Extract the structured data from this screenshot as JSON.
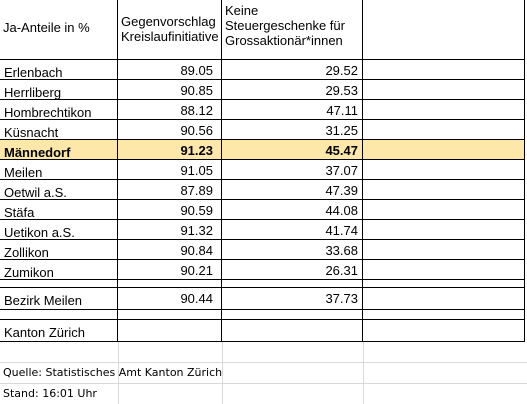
{
  "table": {
    "headers": [
      "Ja-Anteile in %",
      "Gegenvorschlag Kreislaufinitiative",
      "Keine Steuergeschenke für Grossaktionär*innen"
    ],
    "rows": [
      {
        "name": "Erlenbach",
        "v1": "89.05",
        "v2": "29.52"
      },
      {
        "name": "Herrliberg",
        "v1": "90.85",
        "v2": "29.53"
      },
      {
        "name": "Hombrechtikon",
        "v1": "88.12",
        "v2": "47.11"
      },
      {
        "name": "Küsnacht",
        "v1": "90.56",
        "v2": "31.25"
      },
      {
        "name": "Männedorf",
        "v1": "91.23",
        "v2": "45.47"
      },
      {
        "name": "Meilen",
        "v1": "91.05",
        "v2": "37.07"
      },
      {
        "name": "Oetwil a.S.",
        "v1": "87.89",
        "v2": "47.39"
      },
      {
        "name": "Stäfa",
        "v1": "90.59",
        "v2": "44.08"
      },
      {
        "name": "Uetikon a.S.",
        "v1": "91.32",
        "v2": "41.74"
      },
      {
        "name": "Zollikon",
        "v1": "90.84",
        "v2": "33.68"
      },
      {
        "name": "Zumikon",
        "v1": "90.21",
        "v2": "26.31"
      }
    ],
    "bezirk": {
      "name": "Bezirk Meilen",
      "v1": "90.44",
      "v2": "37.73"
    },
    "kanton": {
      "name": "Kanton Zürich",
      "v1": "",
      "v2": ""
    },
    "highlight_color": "#fde8a9"
  },
  "notes": {
    "source": "Quelle: Statistisches Amt Kanton Zürich",
    "status": "Stand: 16:01 Uhr"
  }
}
